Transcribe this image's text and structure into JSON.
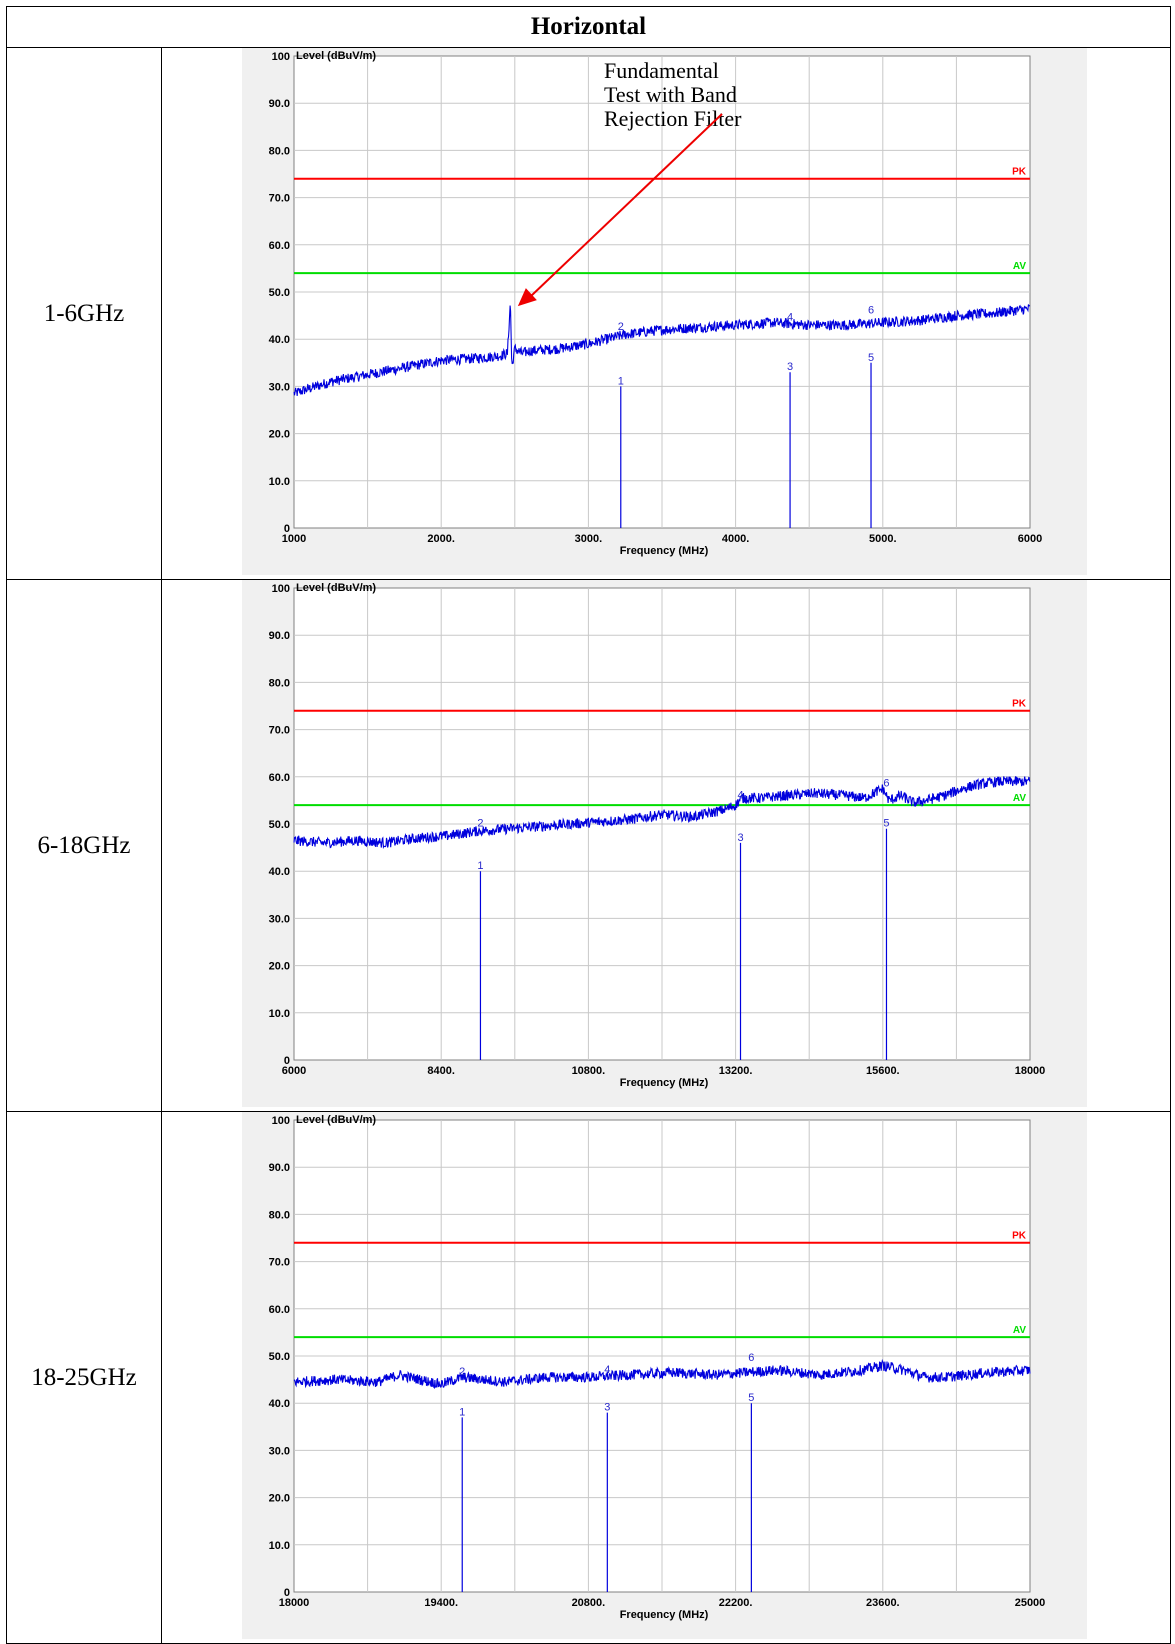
{
  "header": {
    "title": "Horizontal"
  },
  "rows": [
    {
      "band": "1-6GHz"
    },
    {
      "band": "6-18GHz"
    },
    {
      "band": "18-25GHz"
    }
  ],
  "chart_data": [
    {
      "type": "line",
      "ylabel": "Level (dBuV/m)",
      "xlabel": "Frequency (MHz)",
      "xlim": [
        1000,
        6000
      ],
      "ylim": [
        0,
        100
      ],
      "xticks": [
        "1000",
        "2000.",
        "3000.",
        "4000.",
        "5000.",
        "6000"
      ],
      "yticks": [
        "0",
        "10.0",
        "20.0",
        "30.0",
        "40.0",
        "50.0",
        "60.0",
        "70.0",
        "80.0",
        "90.0",
        "100"
      ],
      "grid": true,
      "limits": [
        {
          "name": "PK",
          "value": 74,
          "color": "#ff0000"
        },
        {
          "name": "AV",
          "value": 54,
          "color": "#00dd00"
        }
      ],
      "series": [
        {
          "x": [
            1000,
            1250,
            1500,
            1750,
            2000,
            2250,
            2400,
            2450,
            2470,
            2480,
            2500,
            2550,
            2600,
            2800,
            3000,
            3250,
            3500,
            3750,
            4000,
            4250,
            4500,
            4750,
            5000,
            5250,
            5500,
            5750,
            6000
          ],
          "y": [
            28.5,
            31,
            32.5,
            34,
            35.5,
            36,
            36.5,
            37,
            48,
            34,
            38,
            37,
            37.5,
            38,
            39,
            41,
            42,
            42.5,
            43,
            43.5,
            43,
            43,
            43.5,
            44,
            45,
            45.5,
            46.5
          ],
          "color": "#0000dd"
        }
      ],
      "markers": [
        {
          "label": "1",
          "x": 3220,
          "y": 30
        },
        {
          "label": "2",
          "x": 3220,
          "y": 41.5
        },
        {
          "label": "3",
          "x": 4370,
          "y": 33
        },
        {
          "label": "4",
          "x": 4370,
          "y": 43.5
        },
        {
          "label": "5",
          "x": 4920,
          "y": 35
        },
        {
          "label": "6",
          "x": 4920,
          "y": 45
        }
      ],
      "annotation": {
        "lines": [
          "Fundamental",
          "Test with Band",
          "Rejection Filter"
        ],
        "arrow_to": {
          "x": 2480,
          "y": 47
        }
      }
    },
    {
      "type": "line",
      "ylabel": "Level (dBuV/m)",
      "xlabel": "Frequency (MHz)",
      "xlim": [
        6000,
        18000
      ],
      "ylim": [
        0,
        100
      ],
      "xticks": [
        "6000",
        "8400.",
        "10800.",
        "13200.",
        "15600.",
        "18000"
      ],
      "yticks": [
        "0",
        "10.0",
        "20.0",
        "30.0",
        "40.0",
        "50.0",
        "60.0",
        "70.0",
        "80.0",
        "90.0",
        "100"
      ],
      "grid": true,
      "limits": [
        {
          "name": "PK",
          "value": 74,
          "color": "#ff0000"
        },
        {
          "name": "AV",
          "value": 54,
          "color": "#00dd00"
        }
      ],
      "series": [
        {
          "x": [
            6000,
            6500,
            7000,
            7500,
            8000,
            8500,
            9000,
            9500,
            10000,
            10500,
            11000,
            11500,
            12000,
            12500,
            13000,
            13200,
            13300,
            13600,
            14000,
            14500,
            15000,
            15300,
            15600,
            15700,
            15900,
            16100,
            16300,
            16600,
            16900,
            17200,
            17500,
            18000
          ],
          "y": [
            46.5,
            46,
            46.5,
            46,
            47,
            47.5,
            48.5,
            49,
            49.5,
            50,
            50.5,
            51,
            52,
            51.5,
            53,
            54,
            55.5,
            55.5,
            56,
            56.5,
            56,
            55.5,
            57.5,
            55,
            56,
            54.5,
            55,
            56,
            57.5,
            58.5,
            59,
            59
          ],
          "color": "#0000dd"
        }
      ],
      "markers": [
        {
          "label": "1",
          "x": 9040,
          "y": 40
        },
        {
          "label": "2",
          "x": 9040,
          "y": 49
        },
        {
          "label": "3",
          "x": 13280,
          "y": 46
        },
        {
          "label": "4",
          "x": 13280,
          "y": 55
        },
        {
          "label": "5",
          "x": 15660,
          "y": 49
        },
        {
          "label": "6",
          "x": 15660,
          "y": 57.5
        }
      ]
    },
    {
      "type": "line",
      "ylabel": "Level (dBuV/m)",
      "xlabel": "Frequency (MHz)",
      "xlim": [
        18000,
        25000
      ],
      "ylim": [
        0,
        100
      ],
      "xticks": [
        "18000",
        "19400.",
        "20800.",
        "22200.",
        "23600.",
        "25000"
      ],
      "yticks": [
        "0",
        "10.0",
        "20.0",
        "30.0",
        "40.0",
        "50.0",
        "60.0",
        "70.0",
        "80.0",
        "90.0",
        "100"
      ],
      "grid": true,
      "limits": [
        {
          "name": "PK",
          "value": 74,
          "color": "#ff0000"
        },
        {
          "name": "AV",
          "value": 54,
          "color": "#00dd00"
        }
      ],
      "series": [
        {
          "x": [
            18000,
            18400,
            18800,
            19000,
            19200,
            19400,
            19600,
            19800,
            20000,
            20400,
            20800,
            21200,
            21600,
            22000,
            22300,
            22600,
            23000,
            23400,
            23600,
            23800,
            24000,
            24200,
            24600,
            25000
          ],
          "y": [
            44.5,
            45,
            44.5,
            46,
            45,
            44,
            45.5,
            45,
            44.5,
            45.5,
            45.5,
            46,
            46.5,
            46,
            46.5,
            47,
            46,
            47,
            48,
            47,
            45.5,
            45.5,
            46.5,
            47
          ],
          "color": "#0000dd"
        }
      ],
      "markers": [
        {
          "label": "1",
          "x": 19600,
          "y": 37
        },
        {
          "label": "2",
          "x": 19600,
          "y": 45.5
        },
        {
          "label": "3",
          "x": 20980,
          "y": 38
        },
        {
          "label": "4",
          "x": 20980,
          "y": 46
        },
        {
          "label": "5",
          "x": 22350,
          "y": 40
        },
        {
          "label": "6",
          "x": 22350,
          "y": 48.5
        }
      ]
    }
  ]
}
